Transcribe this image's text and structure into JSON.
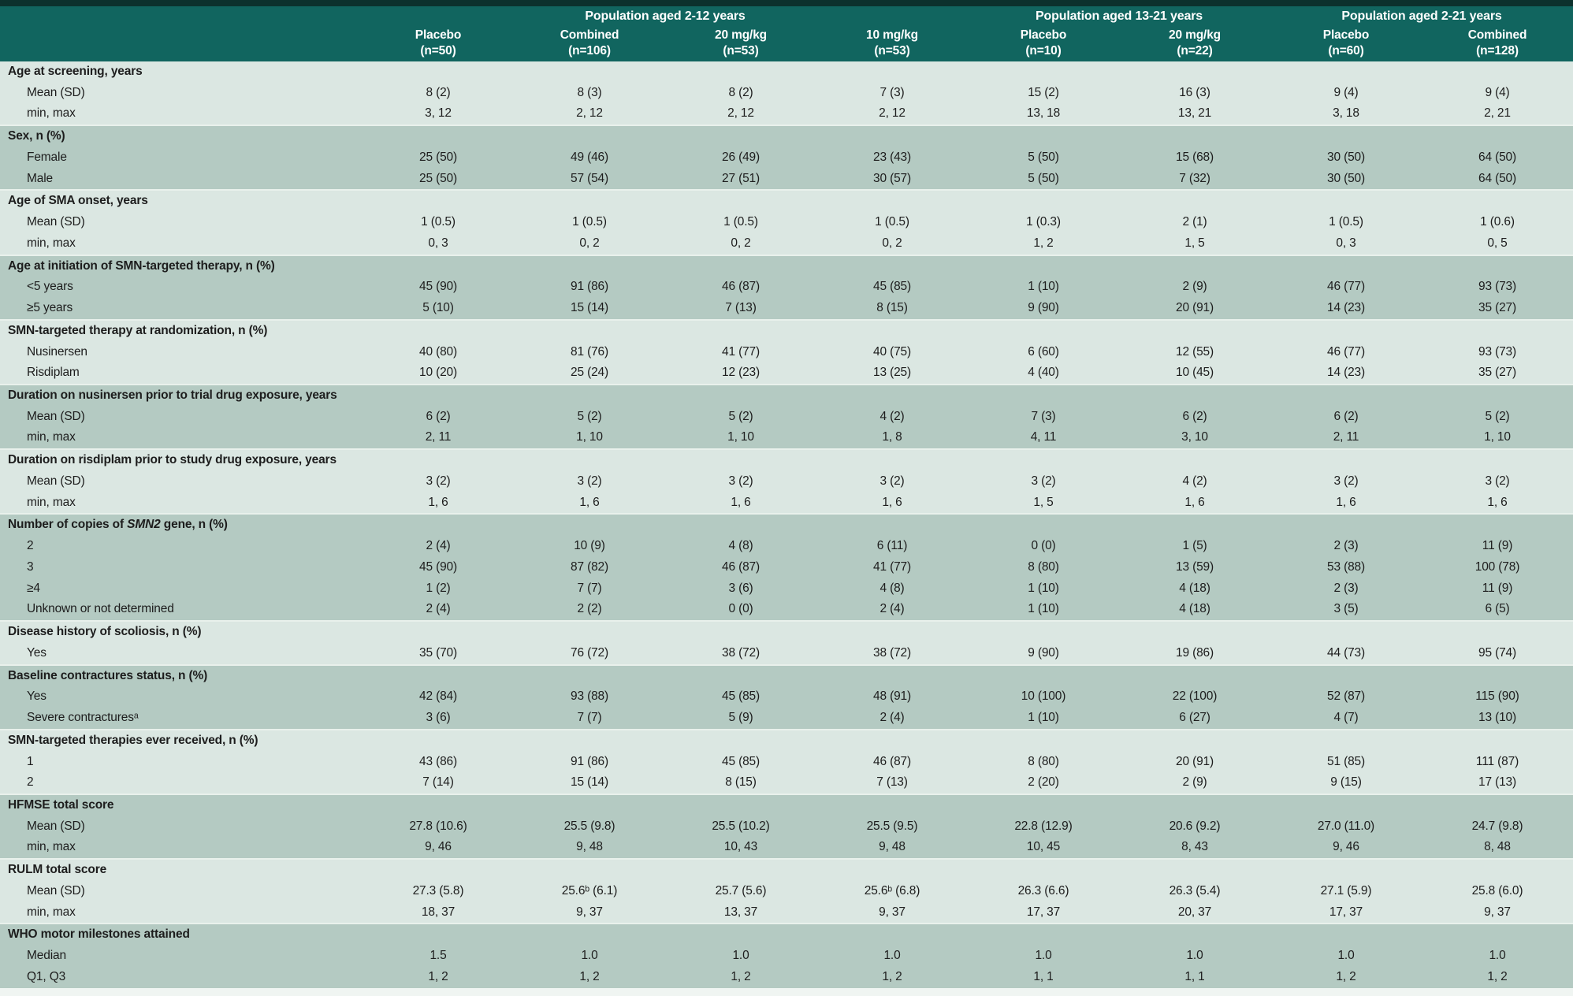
{
  "header": {
    "groups": [
      {
        "label": "Population aged 2-12 years",
        "span": 4
      },
      {
        "label": "Population aged 13-21 years",
        "span": 2
      },
      {
        "label": "Population aged 2-21 years",
        "span": 2
      }
    ],
    "columns": [
      {
        "name": "Placebo",
        "n": "(n=50)"
      },
      {
        "name": "Combined",
        "n": "(n=106)"
      },
      {
        "name": "20 mg/kg",
        "n": "(n=53)"
      },
      {
        "name": "10 mg/kg",
        "n": "(n=53)"
      },
      {
        "name": "Placebo",
        "n": "(n=10)"
      },
      {
        "name": "20 mg/kg",
        "n": "(n=22)"
      },
      {
        "name": "Placebo",
        "n": "(n=60)"
      },
      {
        "name": "Combined",
        "n": "(n=128)"
      }
    ]
  },
  "colors": {
    "header_teal": "#11655f",
    "top_strip": "#0c312d",
    "section_light": "#dbe7e2",
    "section_dark": "#b4cac2",
    "divider": "#e9f1ec",
    "text": "#1d1d1d"
  },
  "sections": [
    {
      "label": "Age at screening, years",
      "rows": [
        {
          "label": "Mean (SD)",
          "values": [
            "8 (2)",
            "8 (3)",
            "8 (2)",
            "7 (3)",
            "15 (2)",
            "16 (3)",
            "9 (4)",
            "9 (4)"
          ]
        },
        {
          "label": "min, max",
          "values": [
            "3, 12",
            "2, 12",
            "2, 12",
            "2, 12",
            "13, 18",
            "13, 21",
            "3, 18",
            "2, 21"
          ]
        }
      ]
    },
    {
      "label": "Sex, n (%)",
      "rows": [
        {
          "label": "Female",
          "values": [
            "25 (50)",
            "49 (46)",
            "26 (49)",
            "23 (43)",
            "5 (50)",
            "15 (68)",
            "30 (50)",
            "64 (50)"
          ]
        },
        {
          "label": "Male",
          "values": [
            "25 (50)",
            "57 (54)",
            "27 (51)",
            "30 (57)",
            "5 (50)",
            "7 (32)",
            "30 (50)",
            "64 (50)"
          ]
        }
      ]
    },
    {
      "label": "Age of SMA onset, years",
      "rows": [
        {
          "label": "Mean (SD)",
          "values": [
            "1 (0.5)",
            "1 (0.5)",
            "1 (0.5)",
            "1 (0.5)",
            "1 (0.3)",
            "2 (1)",
            "1 (0.5)",
            "1 (0.6)"
          ]
        },
        {
          "label": "min, max",
          "values": [
            "0, 3",
            "0, 2",
            "0, 2",
            "0, 2",
            "1, 2",
            "1, 5",
            "0, 3",
            "0, 5"
          ]
        }
      ]
    },
    {
      "label": "Age at initiation of SMN-targeted therapy, n (%)",
      "rows": [
        {
          "label": "<5 years",
          "values": [
            "45 (90)",
            "91 (86)",
            "46 (87)",
            "45 (85)",
            "1 (10)",
            "2 (9)",
            "46 (77)",
            "93 (73)"
          ]
        },
        {
          "label": "≥5 years",
          "values": [
            "5 (10)",
            "15 (14)",
            "7 (13)",
            "8 (15)",
            "9 (90)",
            "20 (91)",
            "14 (23)",
            "35 (27)"
          ]
        }
      ]
    },
    {
      "label": "SMN-targeted therapy at randomization, n (%)",
      "rows": [
        {
          "label": "Nusinersen",
          "values": [
            "40 (80)",
            "81 (76)",
            "41 (77)",
            "40 (75)",
            "6 (60)",
            "12 (55)",
            "46 (77)",
            "93 (73)"
          ]
        },
        {
          "label": "Risdiplam",
          "values": [
            "10 (20)",
            "25 (24)",
            "12 (23)",
            "13 (25)",
            "4 (40)",
            "10 (45)",
            "14 (23)",
            "35 (27)"
          ]
        }
      ]
    },
    {
      "label": "Duration on nusinersen prior to trial drug exposure, years",
      "rows": [
        {
          "label": "Mean (SD)",
          "values": [
            "6 (2)",
            "5 (2)",
            "5 (2)",
            "4 (2)",
            "7 (3)",
            "6 (2)",
            "6 (2)",
            "5 (2)"
          ]
        },
        {
          "label": "min, max",
          "values": [
            "2, 11",
            "1, 10",
            "1, 10",
            "1, 8",
            "4, 11",
            "3, 10",
            "2, 11",
            "1, 10"
          ]
        }
      ]
    },
    {
      "label": "Duration on risdiplam prior to study drug exposure, years",
      "rows": [
        {
          "label": "Mean (SD)",
          "values": [
            "3 (2)",
            "3 (2)",
            "3 (2)",
            "3 (2)",
            "3 (2)",
            "4 (2)",
            "3 (2)",
            "3 (2)"
          ]
        },
        {
          "label": "min, max",
          "values": [
            "1, 6",
            "1, 6",
            "1, 6",
            "1, 6",
            "1, 5",
            "1, 6",
            "1, 6",
            "1, 6"
          ]
        }
      ]
    },
    {
      "label_parts": [
        "Number of copies of ",
        {
          "i": "SMN2"
        },
        " gene, n (%)"
      ],
      "rows": [
        {
          "label": "2",
          "values": [
            "2 (4)",
            "10 (9)",
            "4 (8)",
            "6 (11)",
            "0 (0)",
            "1 (5)",
            "2 (3)",
            "11 (9)"
          ]
        },
        {
          "label": "3",
          "values": [
            "45 (90)",
            "87 (82)",
            "46 (87)",
            "41 (77)",
            "8 (80)",
            "13 (59)",
            "53 (88)",
            "100 (78)"
          ]
        },
        {
          "label": "≥4",
          "values": [
            "1 (2)",
            "7 (7)",
            "3 (6)",
            "4 (8)",
            "1 (10)",
            "4 (18)",
            "2 (3)",
            "11 (9)"
          ]
        },
        {
          "label": "Unknown or not determined",
          "values": [
            "2 (4)",
            "2 (2)",
            "0 (0)",
            "2 (4)",
            "1 (10)",
            "4 (18)",
            "3 (5)",
            "6 (5)"
          ]
        }
      ]
    },
    {
      "label": "Disease history of scoliosis, n (%)",
      "rows": [
        {
          "label": "Yes",
          "values": [
            "35 (70)",
            "76 (72)",
            "38 (72)",
            "38 (72)",
            "9 (90)",
            "19 (86)",
            "44 (73)",
            "95 (74)"
          ]
        }
      ]
    },
    {
      "label": "Baseline contractures status, n (%)",
      "rows": [
        {
          "label": "Yes",
          "values": [
            "42 (84)",
            "93 (88)",
            "45 (85)",
            "48 (91)",
            "10 (100)",
            "22 (100)",
            "52 (87)",
            "115 (90)"
          ]
        },
        {
          "label": "Severe contracturesᵃ",
          "values": [
            "3 (6)",
            "7 (7)",
            "5 (9)",
            "2 (4)",
            "1 (10)",
            "6 (27)",
            "4 (7)",
            "13 (10)"
          ]
        }
      ]
    },
    {
      "label": "SMN-targeted therapies ever received, n (%)",
      "rows": [
        {
          "label": "1",
          "values": [
            "43 (86)",
            "91 (86)",
            "45 (85)",
            "46 (87)",
            "8 (80)",
            "20 (91)",
            "51 (85)",
            "111 (87)"
          ]
        },
        {
          "label": "2",
          "values": [
            "7 (14)",
            "15 (14)",
            "8 (15)",
            "7 (13)",
            "2 (20)",
            "2 (9)",
            "9 (15)",
            "17 (13)"
          ]
        }
      ]
    },
    {
      "label": "HFMSE total score",
      "rows": [
        {
          "label": "Mean (SD)",
          "values": [
            "27.8 (10.6)",
            "25.5 (9.8)",
            "25.5 (10.2)",
            "25.5 (9.5)",
            "22.8 (12.9)",
            "20.6 (9.2)",
            "27.0 (11.0)",
            "24.7 (9.8)"
          ]
        },
        {
          "label": "min, max",
          "values": [
            "9, 46",
            "9, 48",
            "10, 43",
            "9, 48",
            "10, 45",
            "8, 43",
            "9, 46",
            "8, 48"
          ]
        }
      ]
    },
    {
      "label": "RULM total score",
      "rows": [
        {
          "label": "Mean (SD)",
          "values": [
            "27.3 (5.8)",
            "25.6ᵇ (6.1)",
            "25.7 (5.6)",
            "25.6ᵇ (6.8)",
            "26.3 (6.6)",
            "26.3 (5.4)",
            "27.1 (5.9)",
            "25.8 (6.0)"
          ]
        },
        {
          "label": "min, max",
          "values": [
            "18, 37",
            "9, 37",
            "13, 37",
            "9, 37",
            "17, 37",
            "20, 37",
            "17, 37",
            "9, 37"
          ]
        }
      ]
    },
    {
      "label": "WHO motor milestones attained",
      "rows": [
        {
          "label": "Median",
          "values": [
            "1.5",
            "1.0",
            "1.0",
            "1.0",
            "1.0",
            "1.0",
            "1.0",
            "1.0"
          ]
        },
        {
          "label": "Q1, Q3",
          "values": [
            "1, 2",
            "1, 2",
            "1, 2",
            "1, 2",
            "1, 1",
            "1, 1",
            "1, 2",
            "1, 2"
          ]
        }
      ]
    }
  ]
}
